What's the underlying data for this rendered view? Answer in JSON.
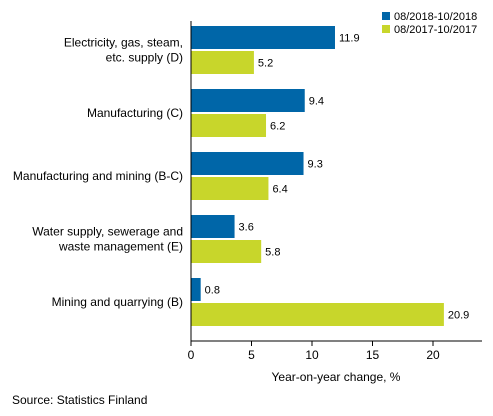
{
  "chart_data": {
    "type": "bar",
    "orientation": "horizontal",
    "categories": [
      [
        "Electricity, gas, steam,",
        "etc. supply (D)"
      ],
      [
        "Manufacturing (C)"
      ],
      [
        "Manufacturing and mining (B-C)"
      ],
      [
        "Water supply, sewerage and",
        "waste management (E)"
      ],
      [
        "Mining and quarrying (B)"
      ]
    ],
    "series": [
      {
        "name": "08/2018-10/2018",
        "color": "#0066a8",
        "values": [
          11.9,
          9.4,
          9.3,
          3.6,
          0.8
        ],
        "labels": [
          "11.9",
          "9.4",
          "9.3",
          "3.6",
          "0.8"
        ]
      },
      {
        "name": "08/2017-10/2017",
        "color": "#c8d62b",
        "values": [
          5.2,
          6.2,
          6.4,
          5.8,
          20.9
        ],
        "labels": [
          "5.2",
          "6.2",
          "6.4",
          "5.8",
          "20.9"
        ]
      }
    ],
    "xlabel": "Year-on-year change, %",
    "xlim": [
      0,
      24
    ],
    "xticks": [
      0,
      5,
      10,
      15,
      20
    ],
    "legend_position": "top-right",
    "grid": false
  },
  "source": "Source: Statistics Finland"
}
